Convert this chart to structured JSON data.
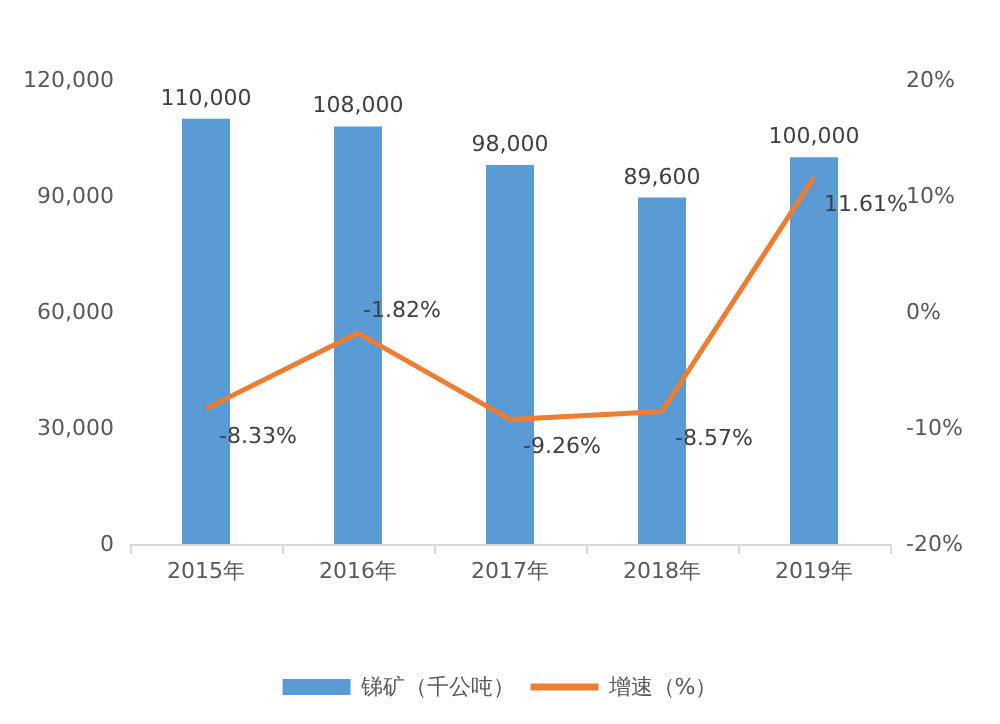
{
  "chart_data": {
    "type": "bar",
    "categories": [
      "2015年",
      "2016年",
      "2017年",
      "2018年",
      "2019年"
    ],
    "series": [
      {
        "name": "锑矿（千公吨）",
        "color": "#5b9bd5",
        "values": [
          110000,
          108000,
          98000,
          89600,
          100000
        ],
        "value_labels": [
          "110,000",
          "108,000",
          "98,000",
          "89,600",
          "100,000"
        ]
      },
      {
        "name": "增速（%）",
        "type": "line",
        "axis": "y2",
        "color": "#ed7d31",
        "values": [
          -8.33,
          -1.82,
          -9.26,
          -8.57,
          11.61
        ],
        "value_labels": [
          "-8.33%",
          "-1.82%",
          "-9.26%",
          "-8.57%",
          "11.61%"
        ]
      }
    ],
    "ylim": [
      0,
      120000
    ],
    "yticks": [
      {
        "value": 0,
        "label": "0"
      },
      {
        "value": 30000,
        "label": "30,000"
      },
      {
        "value": 60000,
        "label": "60,000"
      },
      {
        "value": 90000,
        "label": "90,000"
      },
      {
        "value": 120000,
        "label": "120,000"
      }
    ],
    "y2lim": [
      -20,
      20
    ],
    "y2ticks": [
      {
        "value": -20,
        "label": "-20%"
      },
      {
        "value": -10,
        "label": "-10%"
      },
      {
        "value": 0,
        "label": "0%"
      },
      {
        "value": 10,
        "label": "10%"
      },
      {
        "value": 20,
        "label": "20%"
      }
    ],
    "legend": "bottom",
    "grid": false,
    "marker": "none"
  }
}
